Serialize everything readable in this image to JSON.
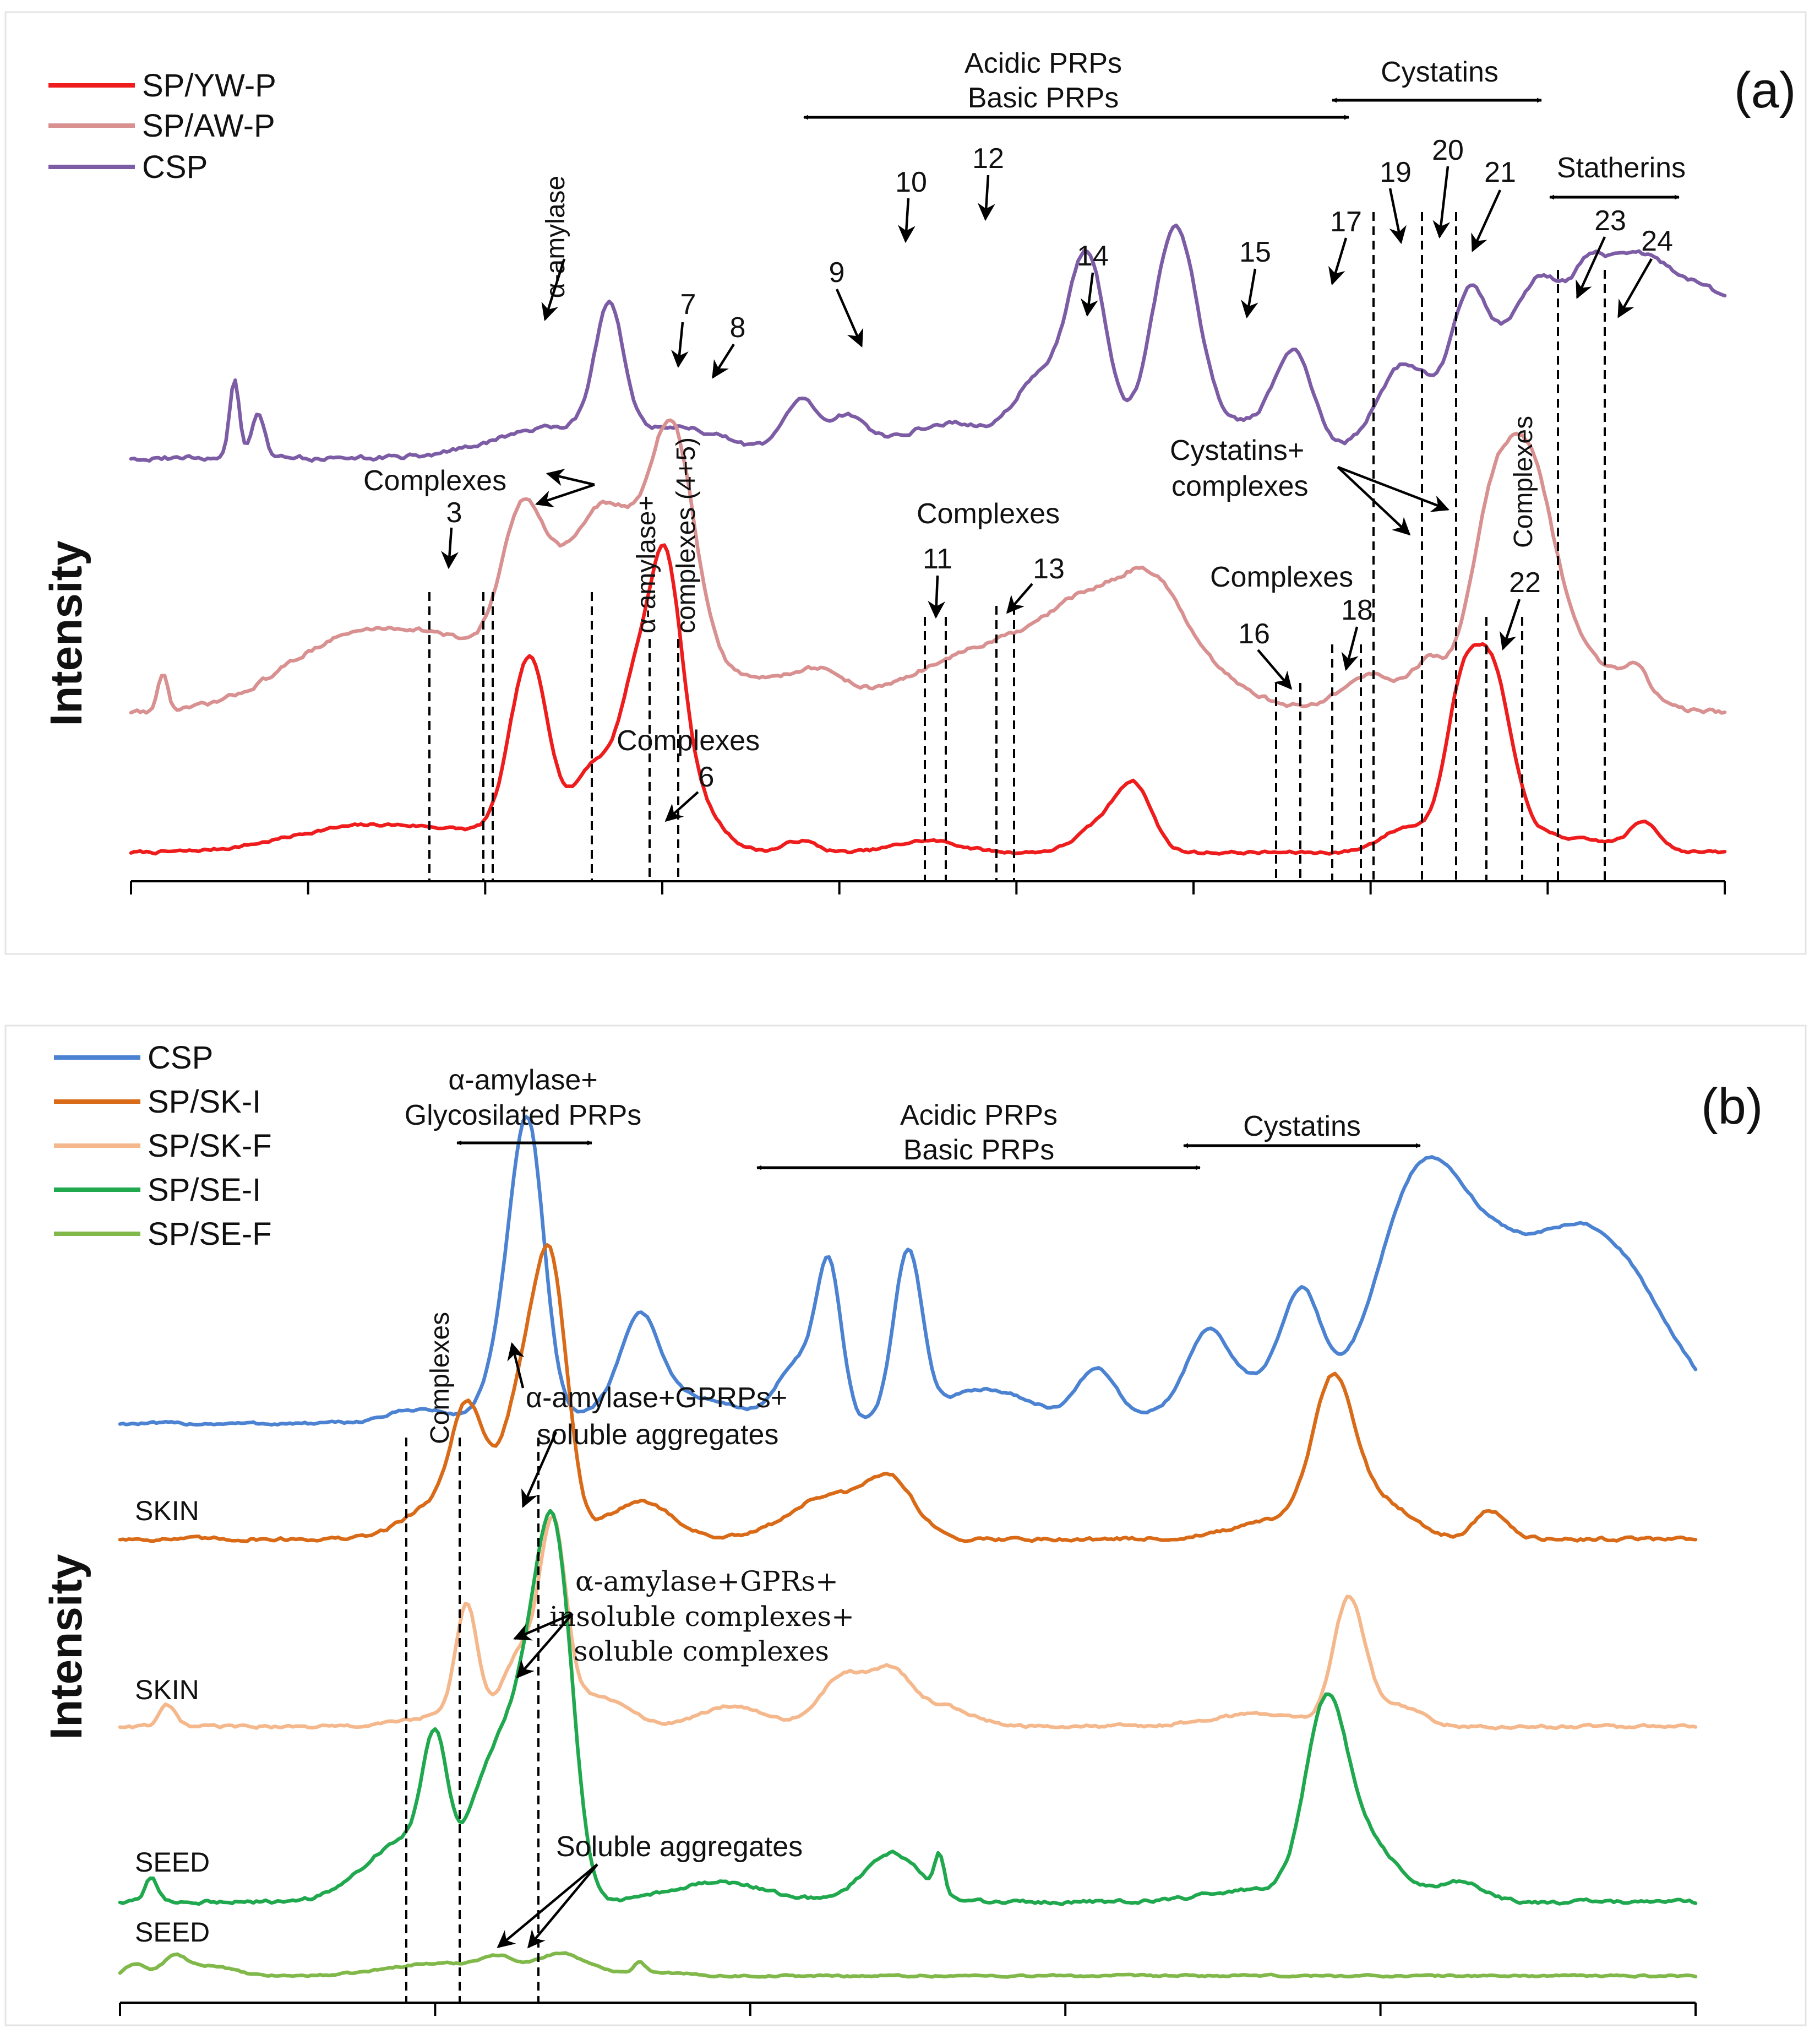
{
  "chart_data": [
    {
      "type": "line",
      "panel_label": "(a)",
      "ylabel": "Intensity",
      "xlabel": "",
      "grid": false,
      "legend_position": "top-left",
      "x_ticks": 10,
      "series": [
        {
          "name": "SP/YW-P",
          "color": "#ee1c1c",
          "baseline": 0.04,
          "noise": 0.025,
          "peaks": [
            [
              0.13,
              0.06,
              0.04
            ],
            [
              0.2,
              0.09,
              0.06
            ],
            [
              0.25,
              0.76,
              0.012
            ],
            [
              0.29,
              0.32,
              0.012
            ],
            [
              0.315,
              0.48,
              0.01
            ],
            [
              0.335,
              0.88,
              0.01
            ],
            [
              0.34,
              0.35,
              0.02
            ],
            [
              0.42,
              0.05,
              0.01
            ],
            [
              0.5,
              0.05,
              0.02
            ],
            [
              0.61,
              0.12,
              0.015
            ],
            [
              0.63,
              0.25,
              0.011
            ],
            [
              0.79,
              0.06,
              0.012
            ],
            [
              0.805,
              0.07,
              0.01
            ],
            [
              0.835,
              0.62,
              0.011
            ],
            [
              0.855,
              0.57,
              0.011
            ],
            [
              0.86,
              0.12,
              0.02
            ],
            [
              0.91,
              0.05,
              0.03
            ],
            [
              0.95,
              0.11,
              0.009
            ]
          ]
        },
        {
          "name": "SP/AW-P",
          "color": "#d99090",
          "baseline": 0.12,
          "noise": 0.03,
          "peaks": [
            [
              0.02,
              0.12,
              0.003
            ],
            [
              0.13,
              0.2,
              0.04
            ],
            [
              0.2,
              0.2,
              0.04
            ],
            [
              0.245,
              0.38,
              0.013
            ],
            [
              0.26,
              0.22,
              0.02
            ],
            [
              0.3,
              0.62,
              0.022
            ],
            [
              0.34,
              0.75,
              0.014
            ],
            [
              0.37,
              0.12,
              0.03
            ],
            [
              0.43,
              0.12,
              0.02
            ],
            [
              0.5,
              0.1,
              0.03
            ],
            [
              0.55,
              0.18,
              0.03
            ],
            [
              0.6,
              0.3,
              0.025
            ],
            [
              0.64,
              0.3,
              0.02
            ],
            [
              0.67,
              0.12,
              0.03
            ],
            [
              0.78,
              0.12,
              0.02
            ],
            [
              0.815,
              0.13,
              0.01
            ],
            [
              0.855,
              0.62,
              0.015
            ],
            [
              0.88,
              0.52,
              0.014
            ],
            [
              0.9,
              0.2,
              0.03
            ],
            [
              0.945,
              0.09,
              0.008
            ]
          ]
        },
        {
          "name": "CSP",
          "color": "#7d5ca6",
          "baseline": 0.05,
          "noise": 0.03,
          "peaks": [
            [
              0.065,
              0.25,
              0.003
            ],
            [
              0.08,
              0.14,
              0.004
            ],
            [
              0.27,
              0.1,
              0.04
            ],
            [
              0.3,
              0.4,
              0.009
            ],
            [
              0.35,
              0.08,
              0.03
            ],
            [
              0.42,
              0.17,
              0.011
            ],
            [
              0.45,
              0.12,
              0.012
            ],
            [
              0.51,
              0.1,
              0.03
            ],
            [
              0.57,
              0.2,
              0.015
            ],
            [
              0.6,
              0.58,
              0.012
            ],
            [
              0.655,
              0.68,
              0.014
            ],
            [
              0.7,
              0.1,
              0.03
            ],
            [
              0.73,
              0.28,
              0.012
            ],
            [
              0.8,
              0.3,
              0.018
            ],
            [
              0.84,
              0.45,
              0.012
            ],
            [
              0.88,
              0.5,
              0.02
            ],
            [
              0.93,
              0.45,
              0.025
            ],
            [
              0.97,
              0.35,
              0.03
            ],
            [
              1.02,
              0.3,
              0.035
            ],
            [
              1.07,
              0.2,
              0.04
            ],
            [
              1.12,
              0.12,
              0.03
            ],
            [
              0.915,
              0.1,
              0.008
            ],
            [
              0.6,
              0.05,
              0.05
            ]
          ]
        }
      ],
      "region_labels": [
        "Acidic PRPs",
        "Basic PRPs",
        "Cystatins",
        "Statherins",
        "α-amylase",
        "Complexes",
        "α-amylase+",
        "complexes (4+5)",
        "Cystatins+",
        "complexes"
      ],
      "peak_numbers": [
        "3",
        "6",
        "7",
        "8",
        "9",
        "10",
        "11",
        "12",
        "13",
        "14",
        "15",
        "16",
        "17",
        "18",
        "19",
        "20",
        "21",
        "22",
        "23",
        "24"
      ]
    },
    {
      "type": "line",
      "panel_label": "(b)",
      "ylabel": "Intensity",
      "xlabel": "",
      "grid": false,
      "legend_position": "top-left",
      "x_ticks": 6,
      "series": [
        {
          "name": "CSP",
          "color": "#4b82d2",
          "baseline": 0.02,
          "noise": 0.02,
          "peaks": [
            [
              0.19,
              0.05,
              0.02
            ],
            [
              0.25,
              0.4,
              0.013
            ],
            [
              0.26,
              0.75,
              0.01
            ],
            [
              0.33,
              0.3,
              0.012
            ],
            [
              0.35,
              0.1,
              0.04
            ],
            [
              0.43,
              0.2,
              0.012
            ],
            [
              0.45,
              0.52,
              0.008
            ],
            [
              0.5,
              0.58,
              0.009
            ],
            [
              0.55,
              0.12,
              0.03
            ],
            [
              0.62,
              0.18,
              0.012
            ],
            [
              0.69,
              0.22,
              0.012
            ],
            [
              0.75,
              0.35,
              0.012
            ],
            [
              0.72,
              0.15,
              0.04
            ],
            [
              0.82,
              0.58,
              0.025
            ],
            [
              0.86,
              0.5,
              0.035
            ],
            [
              0.93,
              0.4,
              0.03
            ],
            [
              0.97,
              0.22,
              0.03
            ],
            [
              0.91,
              0.15,
              0.05
            ]
          ]
        },
        {
          "name": "SP/SK-I",
          "color": "#d96a17",
          "baseline": 0.06,
          "noise": 0.03,
          "peaks": [
            [
              0.2,
              0.14,
              0.02
            ],
            [
              0.22,
              0.45,
              0.01
            ],
            [
              0.245,
              0.2,
              0.015
            ],
            [
              0.26,
              0.55,
              0.012
            ],
            [
              0.275,
              0.9,
              0.01
            ],
            [
              0.33,
              0.16,
              0.02
            ],
            [
              0.45,
              0.18,
              0.025
            ],
            [
              0.49,
              0.22,
              0.015
            ],
            [
              0.74,
              0.08,
              0.03
            ],
            [
              0.77,
              0.6,
              0.013
            ],
            [
              0.8,
              0.15,
              0.02
            ],
            [
              0.87,
              0.12,
              0.01
            ]
          ]
        },
        {
          "name": "SP/SK-F",
          "color": "#f5b88c",
          "baseline": 0.04,
          "noise": 0.03,
          "peaks": [
            [
              0.03,
              0.1,
              0.005
            ],
            [
              0.2,
              0.05,
              0.02
            ],
            [
              0.22,
              0.55,
              0.007
            ],
            [
              0.255,
              0.35,
              0.012
            ],
            [
              0.275,
              0.85,
              0.008
            ],
            [
              0.3,
              0.15,
              0.02
            ],
            [
              0.39,
              0.1,
              0.02
            ],
            [
              0.46,
              0.25,
              0.015
            ],
            [
              0.49,
              0.22,
              0.012
            ],
            [
              0.52,
              0.1,
              0.02
            ],
            [
              0.72,
              0.06,
              0.03
            ],
            [
              0.78,
              0.6,
              0.01
            ],
            [
              0.81,
              0.1,
              0.015
            ]
          ]
        },
        {
          "name": "SP/SE-I",
          "color": "#1fa84d",
          "baseline": 0.05,
          "noise": 0.03,
          "peaks": [
            [
              0.02,
              0.1,
              0.004
            ],
            [
              0.18,
              0.25,
              0.025
            ],
            [
              0.2,
              0.52,
              0.008
            ],
            [
              0.23,
              0.3,
              0.012
            ],
            [
              0.25,
              0.55,
              0.014
            ],
            [
              0.27,
              0.95,
              0.012
            ],
            [
              0.28,
              0.7,
              0.01
            ],
            [
              0.38,
              0.08,
              0.03
            ],
            [
              0.49,
              0.2,
              0.018
            ],
            [
              0.52,
              0.15,
              0.003
            ],
            [
              0.72,
              0.05,
              0.03
            ],
            [
              0.765,
              0.72,
              0.013
            ],
            [
              0.79,
              0.25,
              0.02
            ],
            [
              0.85,
              0.08,
              0.015
            ]
          ]
        },
        {
          "name": "SP/SE-F",
          "color": "#80b84a",
          "baseline": 0.03,
          "noise": 0.08,
          "peaks": [
            [
              0.01,
              0.25,
              0.006
            ],
            [
              0.035,
              0.4,
              0.008
            ],
            [
              0.06,
              0.2,
              0.012
            ],
            [
              0.2,
              0.25,
              0.03
            ],
            [
              0.24,
              0.3,
              0.012
            ],
            [
              0.28,
              0.45,
              0.015
            ],
            [
              0.33,
              0.1,
              0.02
            ],
            [
              0.33,
              0.2,
              0.003
            ]
          ]
        }
      ],
      "region_labels": [
        "α-amylase+",
        "Glycosilated PRPs",
        "Acidic PRPs",
        "Basic PRPs",
        "Cystatins",
        "Complexes",
        "α-amylase+GPRPs+",
        "soluble aggregates",
        "α-amylase+GPRs+",
        "insoluble complexes+",
        "soluble complexes",
        "Soluble aggregates"
      ],
      "trace_labels": [
        "SKIN",
        "SKIN",
        "SEED",
        "SEED"
      ]
    }
  ]
}
